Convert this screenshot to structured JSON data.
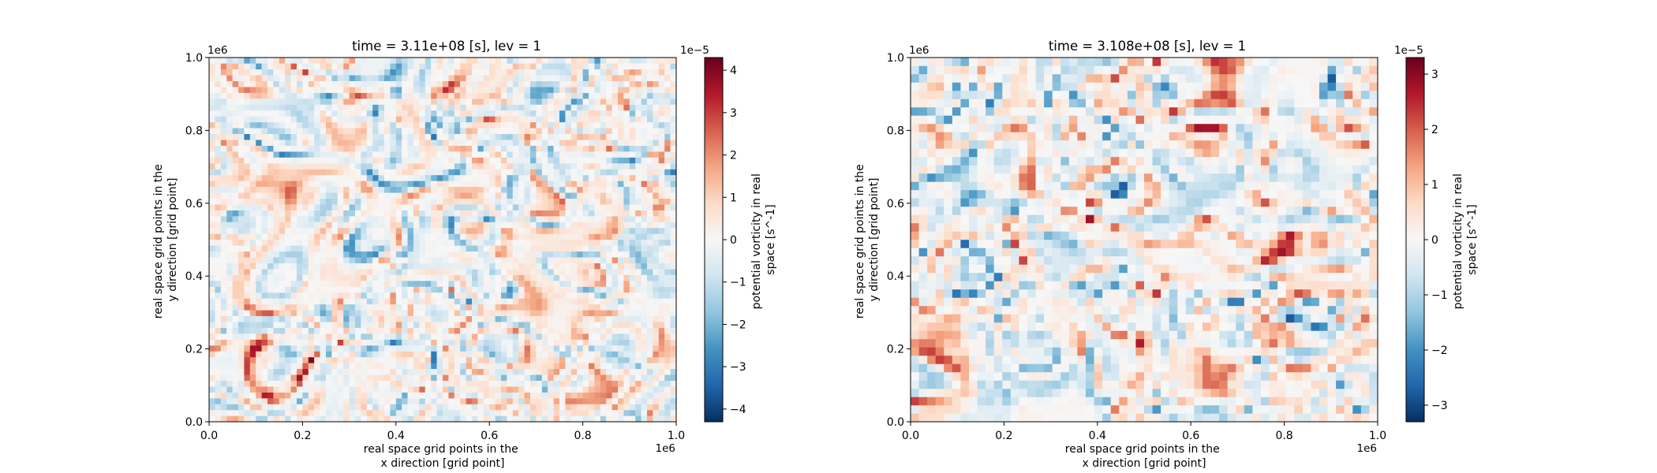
{
  "chart_data": [
    {
      "type": "heatmap",
      "title": "time = 3.11e+08 [s], lev = 1",
      "xlabel": [
        "real space grid points in the",
        "x direction [grid point]"
      ],
      "ylabel": [
        "real space grid points in the",
        "y direction [grid point]"
      ],
      "xlim": [
        0,
        1000000
      ],
      "ylim": [
        0,
        1000000
      ],
      "x_ticks": [
        "0.0",
        "0.2",
        "0.4",
        "0.6",
        "0.8",
        "1.0"
      ],
      "y_ticks": [
        "0.0",
        "0.2",
        "0.4",
        "0.6",
        "0.8",
        "1.0"
      ],
      "x_tick_values": [
        0,
        0.2,
        0.4,
        0.6,
        0.8,
        1.0
      ],
      "y_tick_values": [
        0,
        0.2,
        0.4,
        0.6,
        0.8,
        1.0
      ],
      "x_offset": "1e6",
      "y_offset": "1e6",
      "colormap": "RdBu_r",
      "grid": false,
      "resolution": "high (smooth)",
      "colorbar": {
        "label": [
          "potential vorticity in real",
          "space [s^-1]"
        ],
        "range": [
          -4.3,
          4.3
        ],
        "ticks": [
          "4",
          "3",
          "2",
          "1",
          "0",
          "−1",
          "−2",
          "−3",
          "−4"
        ],
        "tick_values": [
          4,
          3,
          2,
          1,
          0,
          -1,
          -2,
          -3,
          -4
        ],
        "offset": "1e−5",
        "position": "right"
      }
    },
    {
      "type": "heatmap",
      "title": "time = 3.108e+08 [s], lev = 1",
      "xlabel": [
        "real space grid points in the",
        "x direction [grid point]"
      ],
      "ylabel": [
        "real space grid points in the",
        "y direction [grid point]"
      ],
      "xlim": [
        0,
        1000000
      ],
      "ylim": [
        0,
        1000000
      ],
      "x_ticks": [
        "0.0",
        "0.2",
        "0.4",
        "0.6",
        "0.8",
        "1.0"
      ],
      "y_ticks": [
        "0.0",
        "0.2",
        "0.4",
        "0.6",
        "0.8",
        "1.0"
      ],
      "x_tick_values": [
        0,
        0.2,
        0.4,
        0.6,
        0.8,
        1.0
      ],
      "y_tick_values": [
        0,
        0.2,
        0.4,
        0.6,
        0.8,
        1.0
      ],
      "x_offset": "1e6",
      "y_offset": "1e6",
      "colormap": "RdBu_r",
      "grid": false,
      "resolution": "coarse (pixelated)",
      "colorbar": {
        "label": [
          "potential vorticity in real",
          "space [s^-1]"
        ],
        "range": [
          -3.3,
          3.3
        ],
        "ticks": [
          "3",
          "2",
          "1",
          "0",
          "−1",
          "−2",
          "−3"
        ],
        "tick_values": [
          3,
          2,
          1,
          0,
          -1,
          -2,
          -3
        ],
        "offset": "1e−5",
        "position": "right"
      }
    }
  ]
}
